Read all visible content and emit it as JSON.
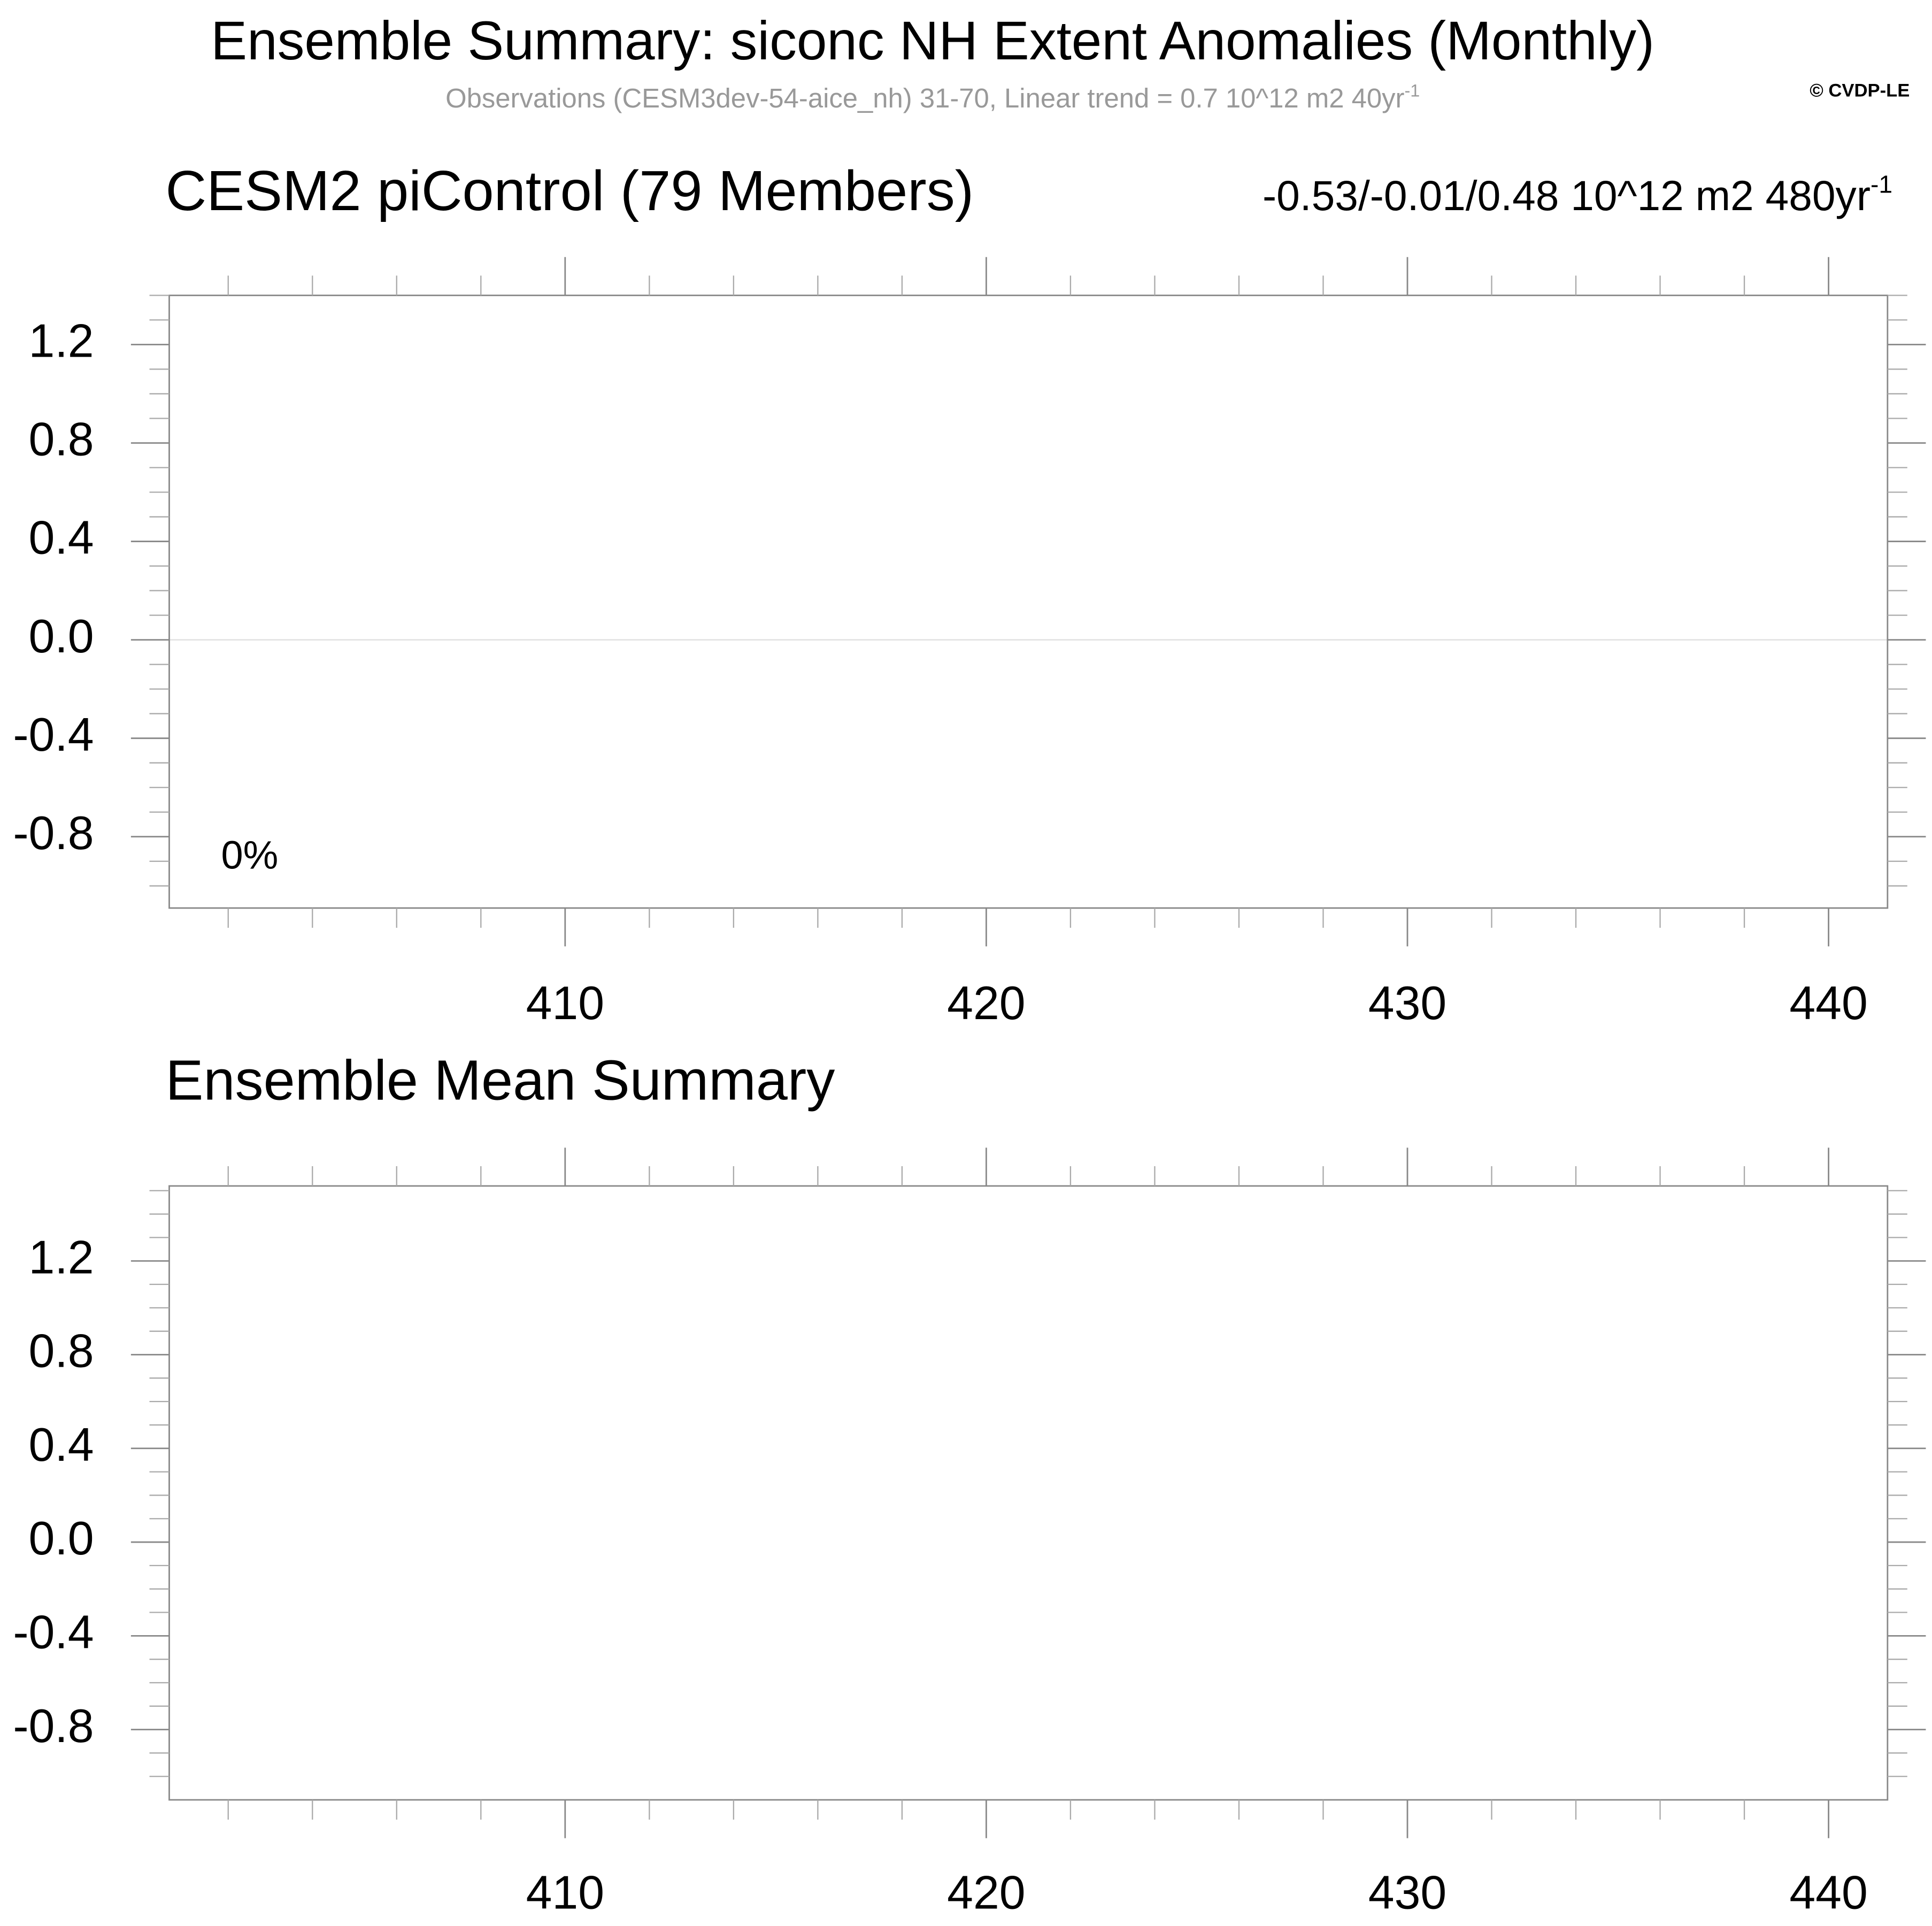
{
  "title": "Ensemble Summary: siconc NH Extent Anomalies (Monthly)",
  "subtitle": "Observations (CESM3dev-54-aice_nh) 31-70, Linear trend = 0.7 10^12 m2 40yr",
  "subtitle_sup": "-1",
  "watermark": "© CVDP-LE",
  "chart_data": [
    {
      "type": "line",
      "title": "CESM2 piControl (79 Members)",
      "title_color": "#1a6a8a",
      "right_title": "-0.53/-0.01/0.48 10^12 m2 480yr",
      "right_title_sup": "-1",
      "annotation": "0%",
      "xlim": [
        400.6,
        441.4
      ],
      "xticks": [
        410,
        420,
        430,
        440
      ],
      "xminorticks": [
        402,
        404,
        406,
        408,
        412,
        414,
        416,
        418,
        422,
        424,
        426,
        428,
        432,
        434,
        436,
        438
      ],
      "ylim": [
        -1.09,
        1.4
      ],
      "yticks": [
        -0.8,
        -0.4,
        {
          "value": 0,
          "label": "0.0"
        },
        0.4,
        0.8,
        1.2
      ],
      "yminorticks": [
        -1.0,
        -0.9,
        -0.7,
        -0.6,
        -0.5,
        -0.3,
        -0.2,
        -0.1,
        0.1,
        0.2,
        0.3,
        0.5,
        0.6,
        0.7,
        0.9,
        1.0,
        1.1,
        1.3,
        1.4
      ],
      "hline": 0
    },
    {
      "type": "line",
      "title": "Ensemble Mean Summary",
      "xlim": [
        400.6,
        441.4
      ],
      "xticks": [
        410,
        420,
        430,
        440
      ],
      "xminorticks": [
        402,
        404,
        406,
        408,
        412,
        414,
        416,
        418,
        422,
        424,
        426,
        428,
        432,
        434,
        436,
        438
      ],
      "ylim": [
        -1.1,
        1.52
      ],
      "yticks": [
        -0.8,
        -0.4,
        {
          "value": 0,
          "label": "0.0"
        },
        0.4,
        0.8,
        1.2
      ],
      "yminorticks": [
        -1.0,
        -0.9,
        -0.7,
        -0.6,
        -0.5,
        -0.3,
        -0.2,
        -0.1,
        0.1,
        0.2,
        0.3,
        0.5,
        0.6,
        0.7,
        0.9,
        1.0,
        1.1,
        1.3,
        1.4,
        1.5
      ]
    }
  ]
}
